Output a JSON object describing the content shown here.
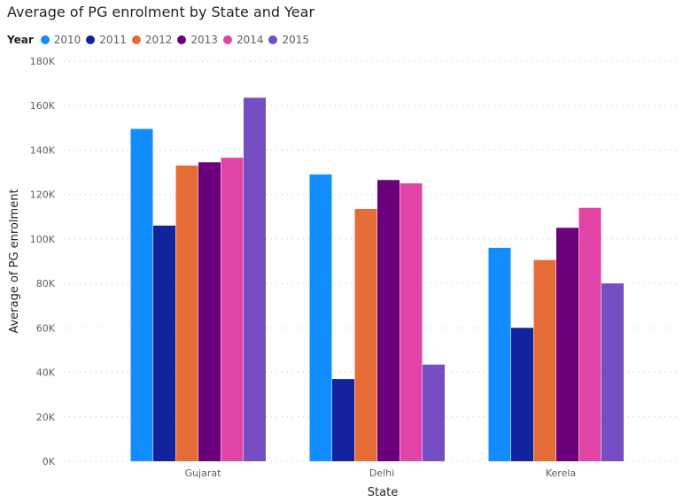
{
  "chart_data": {
    "type": "bar",
    "title": "Average of PG enrolment by State and Year",
    "legend_title": "Year",
    "legend_position": "top-left",
    "xlabel": "State",
    "ylabel": "Average of PG enrolment",
    "categories": [
      "Gujarat",
      "Delhi",
      "Kerela"
    ],
    "ylim": [
      0,
      180000
    ],
    "yticks": [
      0,
      20000,
      40000,
      60000,
      80000,
      100000,
      120000,
      140000,
      160000,
      180000
    ],
    "ytick_labels": [
      "0K",
      "20K",
      "40K",
      "60K",
      "80K",
      "100K",
      "120K",
      "140K",
      "160K",
      "180K"
    ],
    "grid": true,
    "series": [
      {
        "name": "2010",
        "color": "#118dff",
        "values": [
          149500,
          129000,
          96000
        ]
      },
      {
        "name": "2011",
        "color": "#12239e",
        "values": [
          106000,
          37000,
          60000
        ]
      },
      {
        "name": "2012",
        "color": "#e66c37",
        "values": [
          133000,
          113500,
          90500
        ]
      },
      {
        "name": "2013",
        "color": "#6b007b",
        "values": [
          134500,
          126500,
          105000
        ]
      },
      {
        "name": "2014",
        "color": "#e044a7",
        "values": [
          136500,
          125000,
          114000
        ]
      },
      {
        "name": "2015",
        "color": "#744ec2",
        "values": [
          163500,
          43500,
          80000
        ]
      }
    ]
  }
}
